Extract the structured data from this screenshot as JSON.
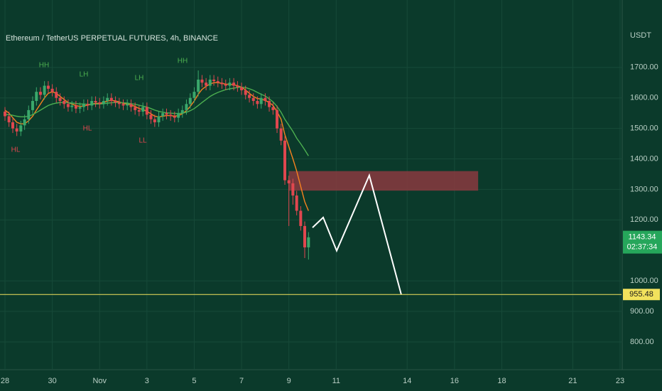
{
  "chart_data": {
    "type": "candlestick",
    "title": "Ethereum / TetherUS PERPETUAL FUTURES, 4h, BINANCE",
    "currency": "USDT",
    "up_color": "#3aa86b",
    "down_color": "#e0474f",
    "grid": true,
    "xlim": [
      -0.21,
      26.06
    ],
    "ylim": [
      709,
      1921
    ],
    "xticks": [
      {
        "value": 0,
        "label": "28"
      },
      {
        "value": 2,
        "label": "30"
      },
      {
        "value": 4,
        "label": "Nov"
      },
      {
        "value": 6,
        "label": "3"
      },
      {
        "value": 8,
        "label": "5"
      },
      {
        "value": 10,
        "label": "7"
      },
      {
        "value": 12,
        "label": "9"
      },
      {
        "value": 14,
        "label": "11"
      },
      {
        "value": 17,
        "label": "14"
      },
      {
        "value": 19,
        "label": "16"
      },
      {
        "value": 21,
        "label": "18"
      },
      {
        "value": 24,
        "label": "21"
      },
      {
        "value": 26,
        "label": "23"
      }
    ],
    "yticks": [
      {
        "value": 800,
        "label": "800.00"
      },
      {
        "value": 900,
        "label": "900.00"
      },
      {
        "value": 1000,
        "label": "1000.00"
      },
      {
        "value": 1200,
        "label": "1200.00"
      },
      {
        "value": 1300,
        "label": "1300.00"
      },
      {
        "value": 1400,
        "label": "1400.00"
      },
      {
        "value": 1500,
        "label": "1500.00"
      },
      {
        "value": 1600,
        "label": "1600.00"
      },
      {
        "value": 1700,
        "label": "1700.00"
      }
    ],
    "x": [
      0,
      0.17,
      0.33,
      0.5,
      0.67,
      0.83,
      1,
      1.17,
      1.33,
      1.5,
      1.67,
      1.83,
      2,
      2.17,
      2.33,
      2.5,
      2.67,
      2.83,
      3,
      3.17,
      3.33,
      3.5,
      3.67,
      3.83,
      4,
      4.17,
      4.33,
      4.5,
      4.67,
      4.83,
      5,
      5.17,
      5.33,
      5.5,
      5.67,
      5.83,
      6,
      6.17,
      6.33,
      6.5,
      6.67,
      6.83,
      7,
      7.17,
      7.33,
      7.5,
      7.67,
      7.83,
      8,
      8.17,
      8.33,
      8.5,
      8.67,
      8.83,
      9,
      9.17,
      9.33,
      9.5,
      9.67,
      9.83,
      10,
      10.17,
      10.33,
      10.5,
      10.67,
      10.83,
      11,
      11.17,
      11.33,
      11.5,
      11.67,
      11.83,
      12,
      12.17,
      12.33,
      12.5,
      12.67,
      12.83
    ],
    "open": [
      1555,
      1540,
      1520,
      1500,
      1490,
      1510,
      1530,
      1560,
      1590,
      1620,
      1610,
      1640,
      1630,
      1620,
      1600,
      1590,
      1580,
      1570,
      1575,
      1565,
      1570,
      1580,
      1575,
      1590,
      1585,
      1580,
      1590,
      1600,
      1590,
      1585,
      1580,
      1575,
      1580,
      1570,
      1560,
      1555,
      1570,
      1545,
      1530,
      1520,
      1540,
      1550,
      1545,
      1540,
      1535,
      1550,
      1560,
      1580,
      1600,
      1620,
      1660,
      1650,
      1640,
      1660,
      1655,
      1650,
      1645,
      1640,
      1650,
      1640,
      1635,
      1625,
      1610,
      1600,
      1590,
      1580,
      1600,
      1590,
      1570,
      1560,
      1500,
      1460,
      1330,
      1320,
      1280,
      1230,
      1180,
      1110
    ],
    "high": [
      1570,
      1555,
      1535,
      1515,
      1525,
      1545,
      1575,
      1605,
      1635,
      1635,
      1655,
      1655,
      1645,
      1635,
      1615,
      1605,
      1595,
      1590,
      1590,
      1585,
      1595,
      1595,
      1605,
      1605,
      1600,
      1605,
      1615,
      1615,
      1605,
      1600,
      1595,
      1595,
      1595,
      1585,
      1575,
      1585,
      1585,
      1560,
      1545,
      1555,
      1565,
      1565,
      1560,
      1555,
      1565,
      1575,
      1595,
      1615,
      1635,
      1690,
      1675,
      1665,
      1675,
      1675,
      1670,
      1665,
      1660,
      1665,
      1665,
      1655,
      1650,
      1640,
      1625,
      1615,
      1605,
      1615,
      1615,
      1605,
      1585,
      1575,
      1515,
      1475,
      1345,
      1335,
      1295,
      1245,
      1195,
      1160
    ],
    "low": [
      1525,
      1505,
      1485,
      1475,
      1475,
      1495,
      1515,
      1545,
      1575,
      1595,
      1595,
      1615,
      1605,
      1585,
      1575,
      1565,
      1555,
      1555,
      1550,
      1550,
      1555,
      1560,
      1560,
      1570,
      1565,
      1565,
      1575,
      1575,
      1570,
      1565,
      1560,
      1560,
      1555,
      1545,
      1540,
      1540,
      1530,
      1515,
      1505,
      1505,
      1525,
      1530,
      1525,
      1520,
      1520,
      1535,
      1545,
      1565,
      1585,
      1605,
      1635,
      1625,
      1625,
      1640,
      1635,
      1630,
      1625,
      1625,
      1625,
      1620,
      1610,
      1595,
      1585,
      1575,
      1565,
      1565,
      1575,
      1555,
      1545,
      1485,
      1445,
      1315,
      1180,
      1250,
      1215,
      1165,
      1075,
      1070
    ],
    "close": [
      1540,
      1520,
      1500,
      1490,
      1510,
      1530,
      1560,
      1590,
      1620,
      1610,
      1640,
      1630,
      1620,
      1600,
      1590,
      1580,
      1570,
      1575,
      1565,
      1570,
      1580,
      1575,
      1590,
      1585,
      1580,
      1590,
      1600,
      1590,
      1585,
      1580,
      1575,
      1580,
      1570,
      1560,
      1555,
      1570,
      1545,
      1530,
      1520,
      1540,
      1550,
      1545,
      1540,
      1535,
      1550,
      1560,
      1580,
      1600,
      1620,
      1660,
      1650,
      1640,
      1660,
      1655,
      1650,
      1645,
      1640,
      1650,
      1640,
      1635,
      1625,
      1610,
      1600,
      1590,
      1580,
      1600,
      1590,
      1570,
      1560,
      1500,
      1460,
      1330,
      1320,
      1280,
      1230,
      1180,
      1110,
      1143
    ],
    "series": [
      {
        "color": "#f5821f",
        "values": [
          1560,
          1550,
          1535,
          1520,
          1515,
          1515,
          1525,
          1540,
          1560,
          1580,
          1600,
          1615,
          1620,
          1615,
          1605,
          1595,
          1585,
          1580,
          1575,
          1572,
          1574,
          1576,
          1580,
          1582,
          1582,
          1585,
          1590,
          1592,
          1590,
          1587,
          1582,
          1580,
          1577,
          1572,
          1565,
          1562,
          1556,
          1548,
          1540,
          1538,
          1540,
          1542,
          1542,
          1540,
          1542,
          1548,
          1558,
          1572,
          1590,
          1612,
          1628,
          1638,
          1646,
          1650,
          1650,
          1648,
          1645,
          1645,
          1643,
          1640,
          1635,
          1626,
          1615,
          1605,
          1598,
          1596,
          1592,
          1585,
          1575,
          1555,
          1530,
          1480,
          1440,
          1400,
          1360,
          1310,
          1260,
          1230
        ]
      },
      {
        "color": "#4caf50",
        "values": [
          1545,
          1545,
          1543,
          1540,
          1538,
          1538,
          1540,
          1545,
          1552,
          1560,
          1568,
          1575,
          1580,
          1583,
          1585,
          1585,
          1584,
          1583,
          1582,
          1580,
          1580,
          1579,
          1579,
          1580,
          1580,
          1581,
          1583,
          1584,
          1585,
          1585,
          1584,
          1583,
          1581,
          1579,
          1576,
          1573,
          1570,
          1565,
          1560,
          1556,
          1553,
          1551,
          1550,
          1549,
          1549,
          1550,
          1553,
          1558,
          1565,
          1575,
          1585,
          1595,
          1605,
          1612,
          1618,
          1623,
          1627,
          1630,
          1632,
          1634,
          1635,
          1634,
          1630,
          1625,
          1618,
          1612,
          1606,
          1597,
          1587,
          1572,
          1553,
          1530,
          1510,
          1490,
          1468,
          1450,
          1430,
          1410
        ]
      }
    ],
    "zone": {
      "color": "#8a3a3f",
      "x": [
        12,
        20
      ],
      "y": [
        1296,
        1360
      ]
    },
    "projection": {
      "color": "#ffffff",
      "x": [
        13.0,
        13.45,
        14.02,
        15.4,
        16.75
      ],
      "y": [
        1175,
        1208,
        1099,
        1346,
        955.48
      ]
    },
    "target_line": {
      "value": 955.48,
      "label": "955.48",
      "color": "#f2e25c"
    },
    "last_price": {
      "value": 1143.34,
      "label": "1143.34",
      "countdown": "02:37:34",
      "color": "#26a65b"
    },
    "annotations": [
      "HH",
      "LH",
      "HL",
      "HL",
      "LH",
      "LL",
      "HH"
    ]
  }
}
